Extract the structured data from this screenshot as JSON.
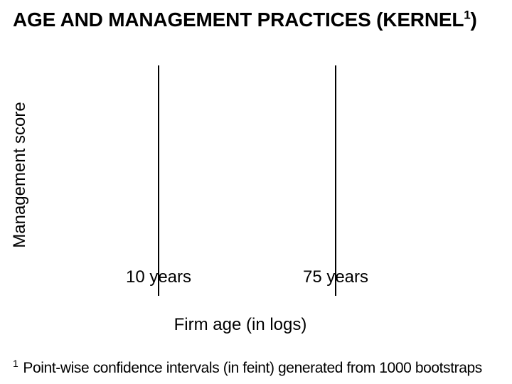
{
  "title": {
    "prefix": "AGE AND MANAGEMENT PRACTICES (KERNEL",
    "superscript": "1",
    "suffix": ")"
  },
  "chart": {
    "ylabel": "Management score",
    "xlabel": "Firm age (in logs)",
    "x_tick_labels": [
      "10 years",
      "75 years"
    ]
  },
  "footnote": {
    "marker": "1",
    "text": "Point-wise confidence intervals (in feint) generated from 1000 bootstraps"
  },
  "colors": {
    "background": "#ffffff",
    "text": "#000000",
    "reference_line": "#000000"
  },
  "chart_data": {
    "type": "line",
    "title": "AGE AND MANAGEMENT PRACTICES (KERNEL¹)",
    "xlabel": "Firm age (in logs)",
    "ylabel": "Management score",
    "x_tick_labels": [
      "10 years",
      "75 years"
    ],
    "x_reference_lines": [
      "10 years",
      "75 years"
    ],
    "series": [],
    "grid": false,
    "legend": false,
    "annotations": []
  }
}
